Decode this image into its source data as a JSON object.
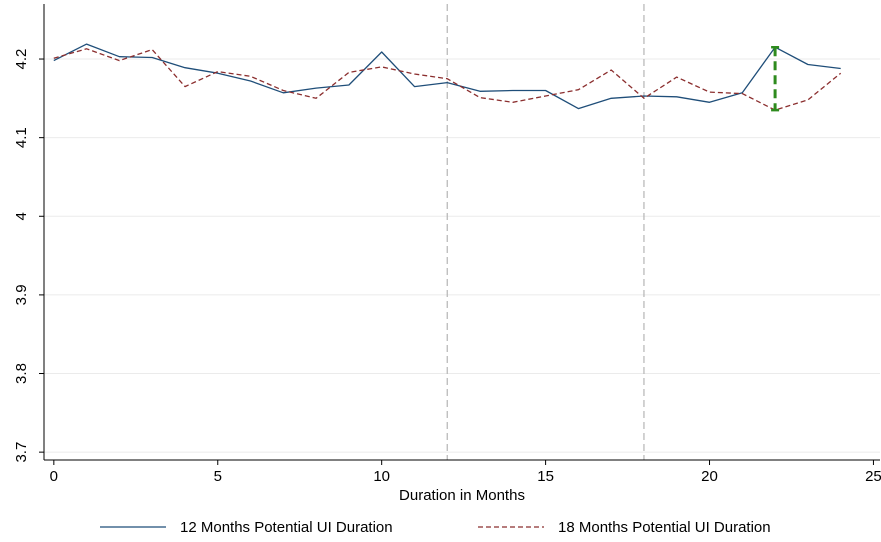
{
  "chart_data": {
    "type": "line",
    "title": "",
    "xlabel": "Duration in Months",
    "ylabel": "",
    "xlim": [
      -0.3,
      25.2
    ],
    "ylim": [
      3.69,
      4.27
    ],
    "x_ticks": [
      0,
      5,
      10,
      15,
      20,
      25
    ],
    "y_ticks": [
      3.7,
      3.8,
      3.9,
      4,
      4.1,
      4.2
    ],
    "grid": "horizontal",
    "legend_position": "bottom",
    "reference_lines_x": [
      12,
      18
    ],
    "x": [
      0,
      1,
      2,
      3,
      4,
      5,
      6,
      7,
      8,
      9,
      10,
      11,
      12,
      13,
      14,
      15,
      16,
      17,
      18,
      19,
      20,
      21,
      22,
      23,
      24
    ],
    "series": [
      {
        "name": "12 Months Potential UI Duration",
        "color": "#1f4e79",
        "style": "solid",
        "values": [
          4.198,
          4.219,
          4.203,
          4.202,
          4.189,
          4.182,
          4.172,
          4.157,
          4.163,
          4.167,
          4.209,
          4.165,
          4.17,
          4.159,
          4.16,
          4.16,
          4.137,
          4.15,
          4.153,
          4.152,
          4.145,
          4.157,
          4.215,
          4.193,
          4.188
        ]
      },
      {
        "name": "18 Months Potential UI Duration",
        "color": "#8b2e2e",
        "style": "dashed",
        "values": [
          4.201,
          4.213,
          4.198,
          4.212,
          4.165,
          4.184,
          4.178,
          4.16,
          4.15,
          4.183,
          4.19,
          4.181,
          4.175,
          4.151,
          4.145,
          4.153,
          4.161,
          4.186,
          4.15,
          4.177,
          4.158,
          4.156,
          4.135,
          4.148,
          4.182
        ]
      }
    ],
    "annotation": {
      "type": "vertical-gap",
      "x": 22,
      "y_from": 4.215,
      "y_to": 4.135,
      "color": "#2e8b1e"
    }
  }
}
